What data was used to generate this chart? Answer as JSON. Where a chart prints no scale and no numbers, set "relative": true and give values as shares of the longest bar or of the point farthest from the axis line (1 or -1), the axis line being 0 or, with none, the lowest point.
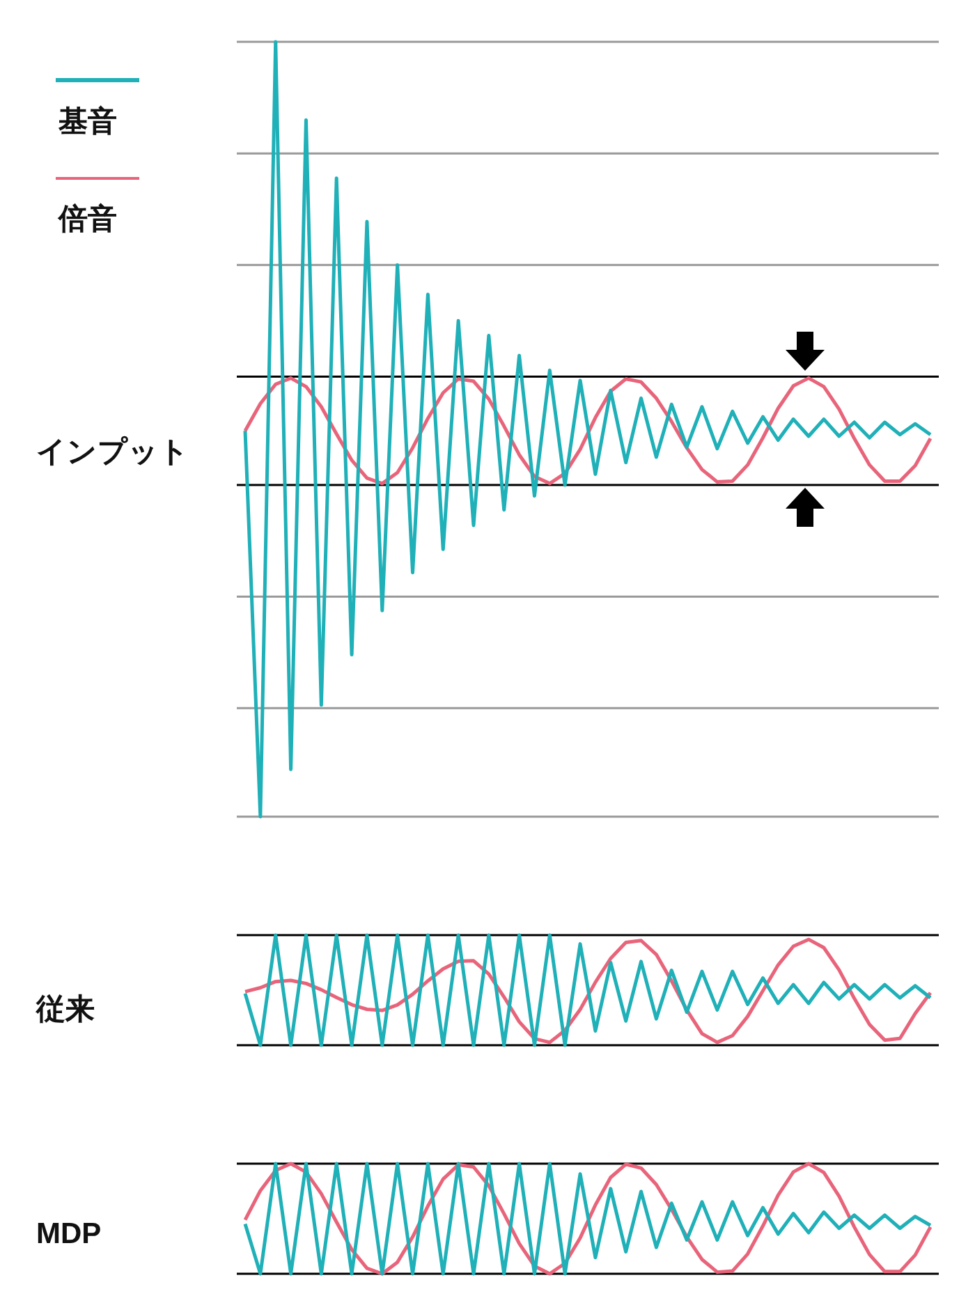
{
  "chart_data": [
    {
      "type": "line",
      "ylabel": "インプット",
      "relative": true,
      "legend": "top left",
      "marker": "none",
      "categories": [
        null,
        null,
        null,
        null,
        null,
        null,
        null,
        null,
        null,
        null,
        null,
        null,
        null,
        null,
        null,
        null,
        null,
        null,
        null,
        null,
        null,
        null,
        null,
        null,
        null,
        null,
        null,
        null,
        null,
        null,
        null,
        null,
        null,
        null,
        null,
        null,
        null,
        null,
        null,
        null,
        null,
        null,
        null,
        null,
        null,
        null
      ],
      "series": [
        {
          "name": "基音",
          "color": "#1fb0b8",
          "values": [
            0.498,
            0,
            1,
            0.061,
            0.899,
            0.144,
            0.824,
            0.209,
            0.768,
            0.266,
            0.712,
            0.315,
            0.674,
            0.345,
            0.64,
            0.376,
            0.621,
            0.396,
            0.595,
            0.414,
            0.576,
            0.428,
            0.563,
            0.442,
            0.55,
            0.457,
            0.54,
            0.464,
            0.532,
            0.477,
            0.529,
            0.475,
            0.523,
            0.482,
            0.516,
            0.486,
            0.513,
            0.491,
            0.513,
            0.491,
            0.509,
            0.489,
            0.509,
            0.493,
            0.507,
            0.493
          ]
        },
        {
          "name": "倍音",
          "color": "#e8647a",
          "values": [
            0.498,
            0.533,
            0.558,
            0.566,
            0.555,
            0.529,
            0.494,
            0.46,
            0.437,
            0.43,
            0.444,
            0.476,
            0.514,
            0.547,
            0.565,
            0.562,
            0.539,
            0.504,
            0.467,
            0.439,
            0.43,
            0.443,
            0.474,
            0.515,
            0.549,
            0.565,
            0.561,
            0.54,
            0.51,
            0.476,
            0.448,
            0.432,
            0.433,
            0.454,
            0.489,
            0.527,
            0.556,
            0.566,
            0.555,
            0.526,
            0.488,
            0.454,
            0.433,
            0.433,
            0.453,
            0.488
          ]
        }
      ],
      "ref_lines": [
        {
          "axis": "y",
          "value": 1,
          "color": "#999999"
        },
        {
          "axis": "y",
          "value": 0.856,
          "color": "#999999"
        },
        {
          "axis": "y",
          "value": 0.712,
          "color": "#999999"
        },
        {
          "axis": "y",
          "value": 0.568,
          "color": "#000000"
        },
        {
          "axis": "y",
          "value": 0.428,
          "color": "#000000"
        },
        {
          "axis": "y",
          "value": 0.284,
          "color": "#999999"
        },
        {
          "axis": "y",
          "value": 0.14,
          "color": "#999999"
        },
        {
          "axis": "y",
          "value": 0,
          "color": "#999999"
        }
      ]
    },
    {
      "type": "line",
      "ylabel": "従来",
      "relative": true,
      "marker": "none",
      "categories": [
        null,
        null,
        null,
        null,
        null,
        null,
        null,
        null,
        null,
        null,
        null,
        null,
        null,
        null,
        null,
        null,
        null,
        null,
        null,
        null,
        null,
        null,
        null,
        null,
        null,
        null,
        null,
        null,
        null,
        null,
        null,
        null,
        null,
        null,
        null,
        null,
        null,
        null,
        null,
        null,
        null,
        null,
        null,
        null,
        null,
        null
      ],
      "series": [
        {
          "color": "#1fb0b8",
          "values": [
            0.47,
            0,
            1,
            0,
            1,
            0,
            1,
            0,
            1,
            0,
            1,
            0,
            1,
            0,
            1,
            0,
            1,
            0,
            1,
            0,
            1,
            0,
            0.92,
            0.13,
            0.75,
            0.22,
            0.76,
            0.24,
            0.68,
            0.3,
            0.67,
            0.32,
            0.67,
            0.37,
            0.61,
            0.38,
            0.55,
            0.38,
            0.57,
            0.42,
            0.55,
            0.42,
            0.55,
            0.43,
            0.54,
            0.43
          ]
        },
        {
          "color": "#e8647a",
          "values": [
            0.487,
            0.522,
            0.578,
            0.589,
            0.561,
            0.504,
            0.433,
            0.368,
            0.326,
            0.316,
            0.366,
            0.463,
            0.584,
            0.693,
            0.763,
            0.767,
            0.647,
            0.438,
            0.213,
            0.059,
            0.026,
            0.134,
            0.324,
            0.572,
            0.788,
            0.933,
            0.951,
            0.824,
            0.584,
            0.32,
            0.105,
            0.026,
            0.087,
            0.262,
            0.495,
            0.729,
            0.899,
            0.961,
            0.886,
            0.684,
            0.425,
            0.188,
            0.046,
            0.062,
            0.288,
            0.476
          ]
        }
      ],
      "ref_lines": [
        {
          "axis": "y",
          "value": 1,
          "color": "#000000"
        },
        {
          "axis": "y",
          "value": 0,
          "color": "#000000"
        }
      ]
    },
    {
      "type": "line",
      "ylabel": "MDP",
      "relative": true,
      "marker": "none",
      "categories": [
        null,
        null,
        null,
        null,
        null,
        null,
        null,
        null,
        null,
        null,
        null,
        null,
        null,
        null,
        null,
        null,
        null,
        null,
        null,
        null,
        null,
        null,
        null,
        null,
        null,
        null,
        null,
        null,
        null,
        null,
        null,
        null,
        null,
        null,
        null,
        null,
        null,
        null,
        null,
        null,
        null,
        null,
        null,
        null,
        null,
        null
      ],
      "series": [
        {
          "color": "#1fb0b8",
          "values": [
            0.453,
            0,
            1,
            0,
            1,
            0,
            1,
            0,
            1,
            0,
            1,
            0,
            1,
            0,
            1,
            0,
            1,
            0,
            1,
            0,
            1,
            0,
            0.907,
            0.147,
            0.773,
            0.2,
            0.747,
            0.24,
            0.64,
            0.307,
            0.653,
            0.307,
            0.653,
            0.347,
            0.6,
            0.36,
            0.547,
            0.373,
            0.56,
            0.413,
            0.533,
            0.413,
            0.533,
            0.413,
            0.52,
            0.44
          ]
        },
        {
          "color": "#e8647a",
          "values": [
            0.49,
            0.755,
            0.938,
            1,
            0.923,
            0.727,
            0.47,
            0.22,
            0.05,
            0,
            0.105,
            0.335,
            0.615,
            0.86,
            0.99,
            0.97,
            0.8,
            0.545,
            0.275,
            0.07,
            0,
            0.095,
            0.325,
            0.625,
            0.875,
            0.995,
            0.96,
            0.81,
            0.585,
            0.335,
            0.13,
            0.015,
            0.025,
            0.18,
            0.435,
            0.715,
            0.925,
            1,
            0.92,
            0.705,
            0.425,
            0.175,
            0.02,
            0.02,
            0.17,
            0.425
          ]
        }
      ],
      "ref_lines": [
        {
          "axis": "y",
          "value": 1,
          "color": "#000000"
        },
        {
          "axis": "y",
          "value": 0,
          "color": "#000000"
        }
      ]
    }
  ]
}
